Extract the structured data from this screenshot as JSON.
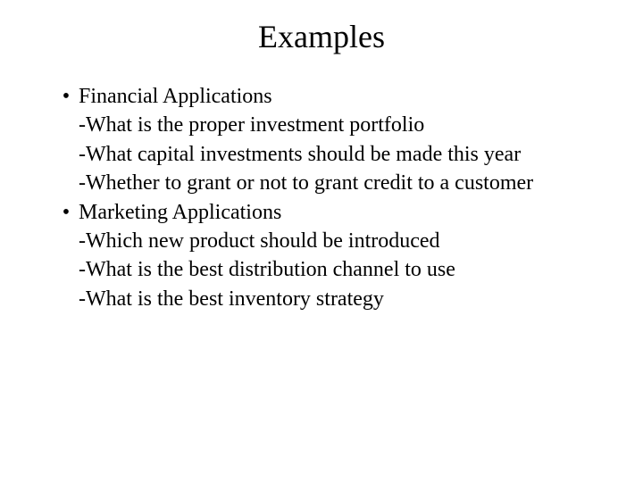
{
  "title": "Examples",
  "content": {
    "bullet1": "Financial Applications",
    "sub1": "-What is the proper investment portfolio",
    "sub2": "-What capital investments should be made this year",
    "sub3": "-Whether to grant or not to grant credit to a customer",
    "bullet2": "Marketing Applications",
    "sub4": "-Which new product should be introduced",
    "sub5": "-What is the best distribution channel to use",
    "sub6": "-What is the best inventory strategy"
  },
  "colors": {
    "background": "#ffffff",
    "text": "#000000"
  },
  "typography": {
    "title_fontsize": 36,
    "body_fontsize": 24,
    "font_family": "Times New Roman"
  }
}
